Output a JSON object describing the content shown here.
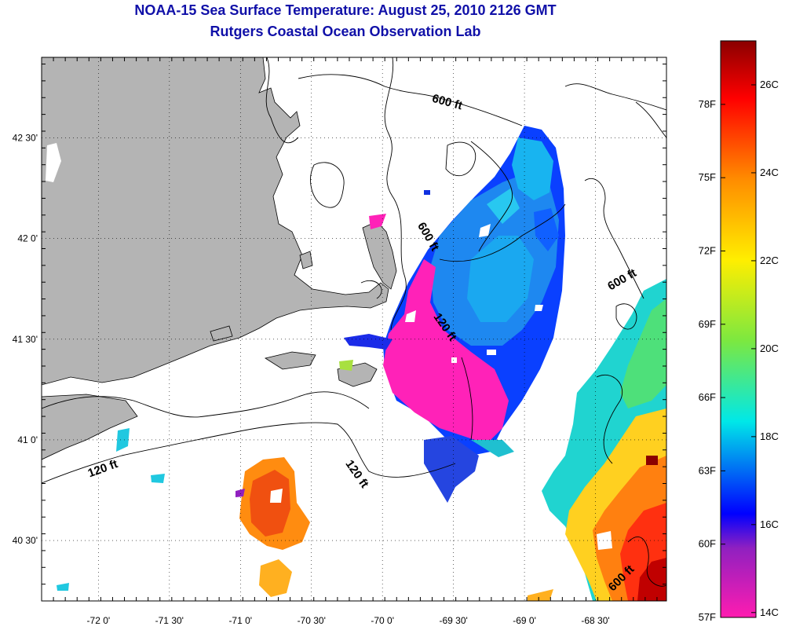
{
  "header": {
    "title": "NOAA-15 Sea Surface Temperature:  August 25, 2010 2126 GMT",
    "subtitle": "Rutgers Coastal Ocean Observation Lab"
  },
  "map": {
    "lon_labels": [
      "-72 0'",
      "-71 30'",
      "-71 0'",
      "-70 30'",
      "-70 0'",
      "-69 30'",
      "-69 0'",
      "-68 30'"
    ],
    "lon_values": [
      -72.0,
      -71.5,
      -71.0,
      -70.5,
      -70.0,
      -69.5,
      -69.0,
      -68.5
    ],
    "lat_labels": [
      "42 30'",
      "42 0'",
      "41 30'",
      "41 0'",
      "40 30'"
    ],
    "lat_values": [
      42.5,
      42.0,
      41.5,
      41.0,
      40.5
    ],
    "lon_range": [
      -72.4,
      -68.0
    ],
    "lat_range": [
      40.2,
      42.9
    ],
    "land_color": "#b4b4b4",
    "contour_labels": [
      {
        "text": "600 ft",
        "lon": -69.55,
        "lat": 42.66
      },
      {
        "text": "600 ft",
        "lon": -69.7,
        "lat": 42.0
      },
      {
        "text": "120 ft",
        "lon": -69.58,
        "lat": 41.55
      },
      {
        "text": "600 ft",
        "lon": -68.3,
        "lat": 41.78
      },
      {
        "text": "120 ft",
        "lon": -71.96,
        "lat": 40.84
      },
      {
        "text": "120 ft",
        "lon": -70.2,
        "lat": 40.82
      },
      {
        "text": "600 ft",
        "lon": -68.3,
        "lat": 40.3
      }
    ]
  },
  "colorbar": {
    "f_labels": [
      "78F",
      "75F",
      "72F",
      "69F",
      "66F",
      "63F",
      "60F",
      "57F"
    ],
    "c_labels": [
      "26C",
      "24C",
      "22C",
      "20C",
      "18C",
      "16C",
      "14C"
    ],
    "colors": [
      "#8a0000",
      "#ff0000",
      "#ff8c00",
      "#ffee00",
      "#7ce840",
      "#00e8e8",
      "#0000ff",
      "#9020c0",
      "#ff1cb0"
    ]
  }
}
